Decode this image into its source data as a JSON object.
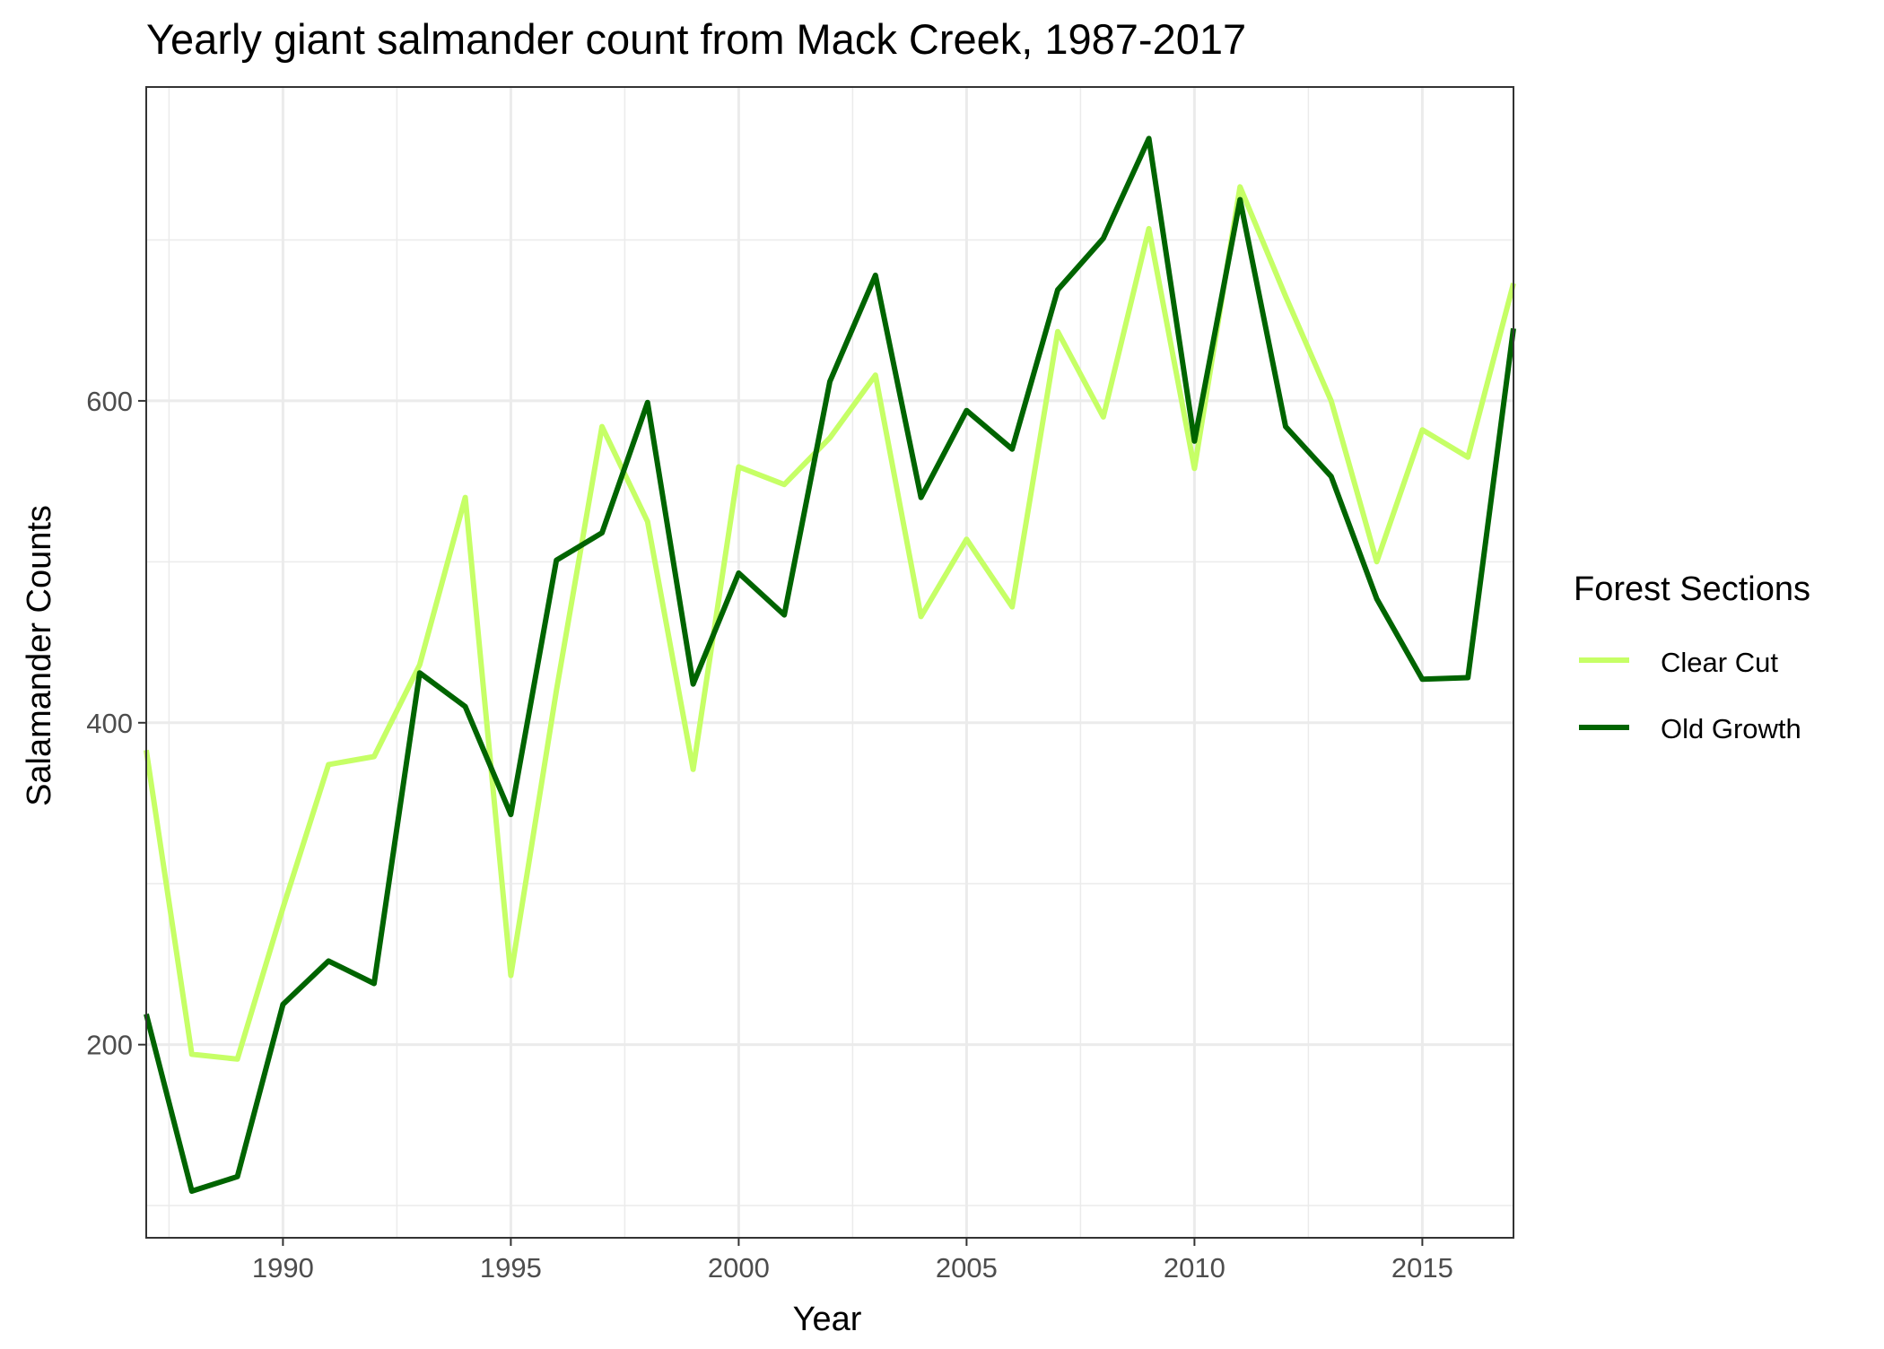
{
  "chart_data": {
    "type": "line",
    "title": "Yearly giant salmander count from Mack Creek, 1987-2017",
    "xlabel": "Year",
    "ylabel": "Salamander Counts",
    "xlim": [
      1987,
      2017
    ],
    "ylim": [
      80,
      795
    ],
    "x_ticks": [
      1990,
      1995,
      2000,
      2005,
      2010,
      2015
    ],
    "x_minor_ticks": [
      1987.5,
      1992.5,
      1997.5,
      2002.5,
      2007.5,
      2012.5
    ],
    "y_ticks": [
      200,
      400,
      600
    ],
    "y_minor_ticks": [
      100,
      300,
      500,
      700
    ],
    "grid": true,
    "legend": {
      "title": "Forest Sections",
      "position": "right"
    },
    "x": [
      1987,
      1988,
      1989,
      1990,
      1991,
      1992,
      1993,
      1994,
      1995,
      1996,
      1997,
      1998,
      1999,
      2000,
      2001,
      2002,
      2003,
      2004,
      2005,
      2006,
      2007,
      2008,
      2009,
      2010,
      2011,
      2012,
      2013,
      2014,
      2015,
      2016,
      2017
    ],
    "series": [
      {
        "name": "Clear Cut",
        "color": "#c6ff66",
        "values": [
          383,
          194,
          191,
          285,
          374,
          379,
          436,
          540,
          243,
          420,
          584,
          525,
          371,
          559,
          548,
          577,
          616,
          466,
          514,
          472,
          643,
          590,
          707,
          558,
          733,
          665,
          600,
          500,
          582,
          565,
          673
        ]
      },
      {
        "name": "Old Growth",
        "color": "#006400",
        "values": [
          219,
          109,
          118,
          225,
          252,
          238,
          431,
          410,
          343,
          501,
          518,
          599,
          424,
          493,
          467,
          612,
          678,
          540,
          594,
          570,
          669,
          701,
          763,
          575,
          725,
          584,
          553,
          477,
          427,
          428,
          645
        ]
      }
    ]
  }
}
